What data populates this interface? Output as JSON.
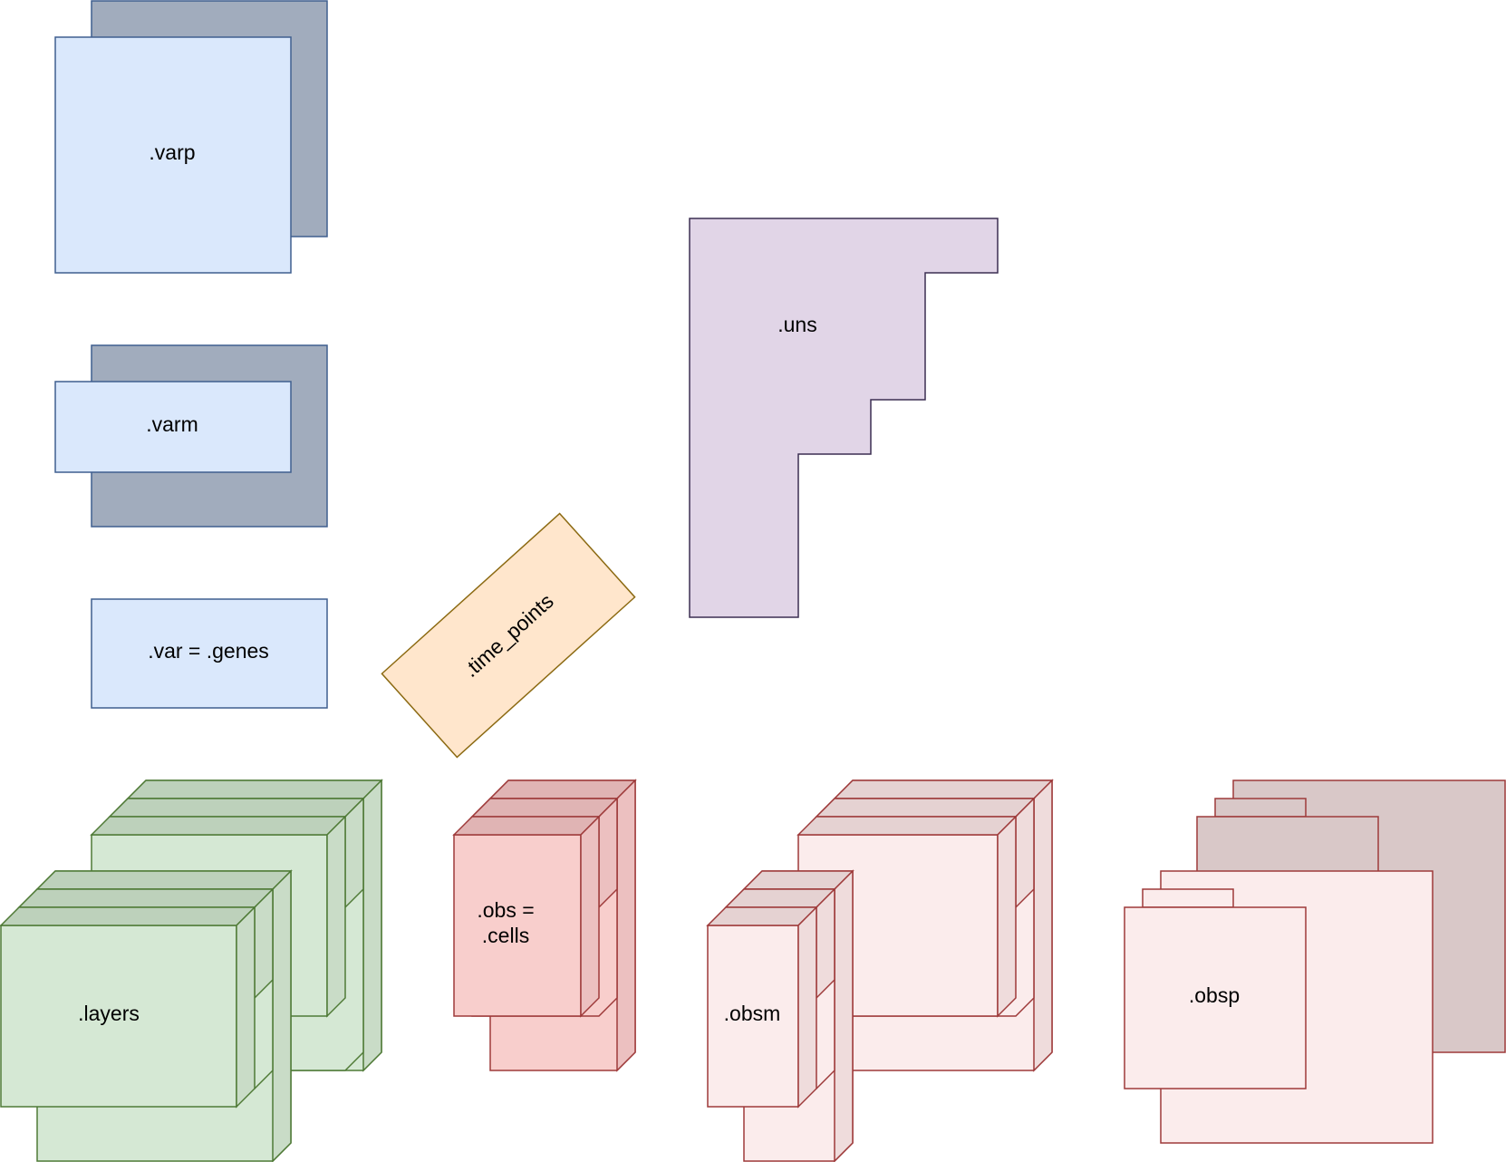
{
  "labels": {
    "varp": ".varp",
    "varm": ".varm",
    "var": ".var = .genes",
    "uns": ".uns",
    "time_points": ".time_points",
    "layers": ".layers",
    "obs_line1": ".obs =",
    "obs_line2": ".cells",
    "obsm": ".obsm",
    "obsp": ".obsp"
  },
  "colors": {
    "blue_fill": "#dae8fc",
    "blue_stroke": "#3f5f8f",
    "slate_fill": "#a1acbd",
    "purple_fill": "#e1d5e7",
    "purple_stroke": "#3c2e52",
    "orange_fill": "#ffe6cc",
    "orange_stroke": "#8c6a12",
    "green_fill": "#d5e8d4",
    "green_shade": "#bdd1bb",
    "green_stroke": "#4f7a36",
    "red_fill": "#f8cecc",
    "red_shade": "#e0b4b4",
    "red_stroke": "#9e3a3a",
    "pink_fill": "#fbecec",
    "pink_shade": "#e5d2d2",
    "mauve_fill": "#d9c8c8"
  }
}
